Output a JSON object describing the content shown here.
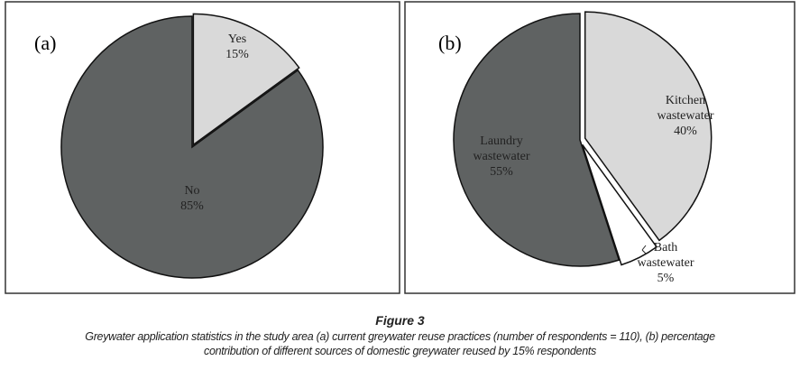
{
  "chart_data": [
    {
      "type": "pie",
      "panel_label": "(a)",
      "slices": [
        {
          "label": "Yes",
          "value": 15,
          "value_label": "15%",
          "color": "#d9d9d9",
          "exploded": true
        },
        {
          "label": "No",
          "value": 85,
          "value_label": "85%",
          "color": "#5f6262",
          "exploded": false
        }
      ]
    },
    {
      "type": "pie",
      "panel_label": "(b)",
      "slices": [
        {
          "label": "Kitchen wastewater",
          "lines": [
            "Kitchen",
            "wastewater"
          ],
          "value": 40,
          "value_label": "40%",
          "color": "#d9d9d9",
          "exploded": true
        },
        {
          "label": "Bath wastewater",
          "lines": [
            "Bath",
            "wastewater"
          ],
          "value": 5,
          "value_label": "5%",
          "color": "#ffffff",
          "exploded": true
        },
        {
          "label": "Laundry wastewater",
          "lines": [
            "Laundry",
            "wastewater"
          ],
          "value": 55,
          "value_label": "55%",
          "color": "#5f6262",
          "exploded": false
        }
      ]
    }
  ],
  "caption": {
    "figure": "Figure 3",
    "line1": "Greywater application statistics in the study area (a) current greywater reuse practices (number of respondents = 110), (b) percentage",
    "line2": "contribution of different sources of domestic greywater reused by 15% respondents"
  }
}
